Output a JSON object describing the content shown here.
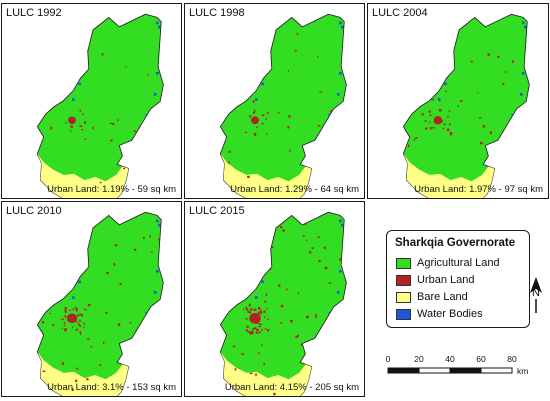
{
  "panels": [
    {
      "title": "LULC 1992",
      "caption": "Urban Land: 1.19% - 59 sq km",
      "urban_share": 0.0119
    },
    {
      "title": "LULC 1998",
      "caption": "Urban Land: 1.29% - 64 sq km",
      "urban_share": 0.0129
    },
    {
      "title": "LULC 2004",
      "caption": "Urban Land: 1.97% - 97 sq km",
      "urban_share": 0.0197
    },
    {
      "title": "LULC 2010",
      "caption": "Urban Land: 3.1% - 153 sq km",
      "urban_share": 0.031
    },
    {
      "title": "LULC 2015",
      "caption": "Urban Land: 4.15% - 205 sq km",
      "urban_share": 0.0415
    }
  ],
  "legend": {
    "title": "Sharkqia Governorate",
    "items": [
      {
        "label": "Agricultural Land",
        "color": "#33dd22"
      },
      {
        "label": "Urban Land",
        "color": "#b22222"
      },
      {
        "label": "Bare Land",
        "color": "#ffff88"
      },
      {
        "label": "Water Bodies",
        "color": "#2255dd"
      }
    ]
  },
  "north_arrow": {
    "label": "N"
  },
  "scale_bar": {
    "ticks": [
      "0",
      "20",
      "40",
      "60",
      "80"
    ],
    "unit": "km"
  },
  "colors": {
    "agricultural": "#33dd22",
    "urban": "#b22222",
    "bare": "#ffff88",
    "water": "#2255dd"
  }
}
